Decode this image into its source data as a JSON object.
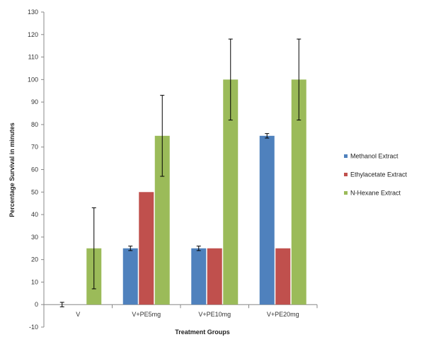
{
  "chart_data": {
    "type": "bar",
    "xlabel": "Treatment Groups",
    "ylabel": "Percentage Survival in minutes",
    "ylim": [
      -10,
      130
    ],
    "ytick_step": 10,
    "categories": [
      "V",
      "V+PE5mg",
      "V+PE10mg",
      "V+PE20mg"
    ],
    "series": [
      {
        "name": "Methanol Extract",
        "color": "#4F81BD",
        "values": [
          0,
          25,
          25,
          75
        ],
        "errors": [
          1,
          1,
          1,
          1
        ]
      },
      {
        "name": "Ethylacetate Extract",
        "color": "#C0504D",
        "values": [
          0,
          50,
          25,
          25
        ],
        "errors": [
          0,
          0,
          0,
          0
        ]
      },
      {
        "name": "N-Hexane Extract",
        "color": "#9BBB59",
        "values": [
          25,
          75,
          100,
          100
        ],
        "errors": [
          18,
          18,
          18,
          18
        ]
      }
    ],
    "grid": false,
    "legend_position": "right"
  }
}
